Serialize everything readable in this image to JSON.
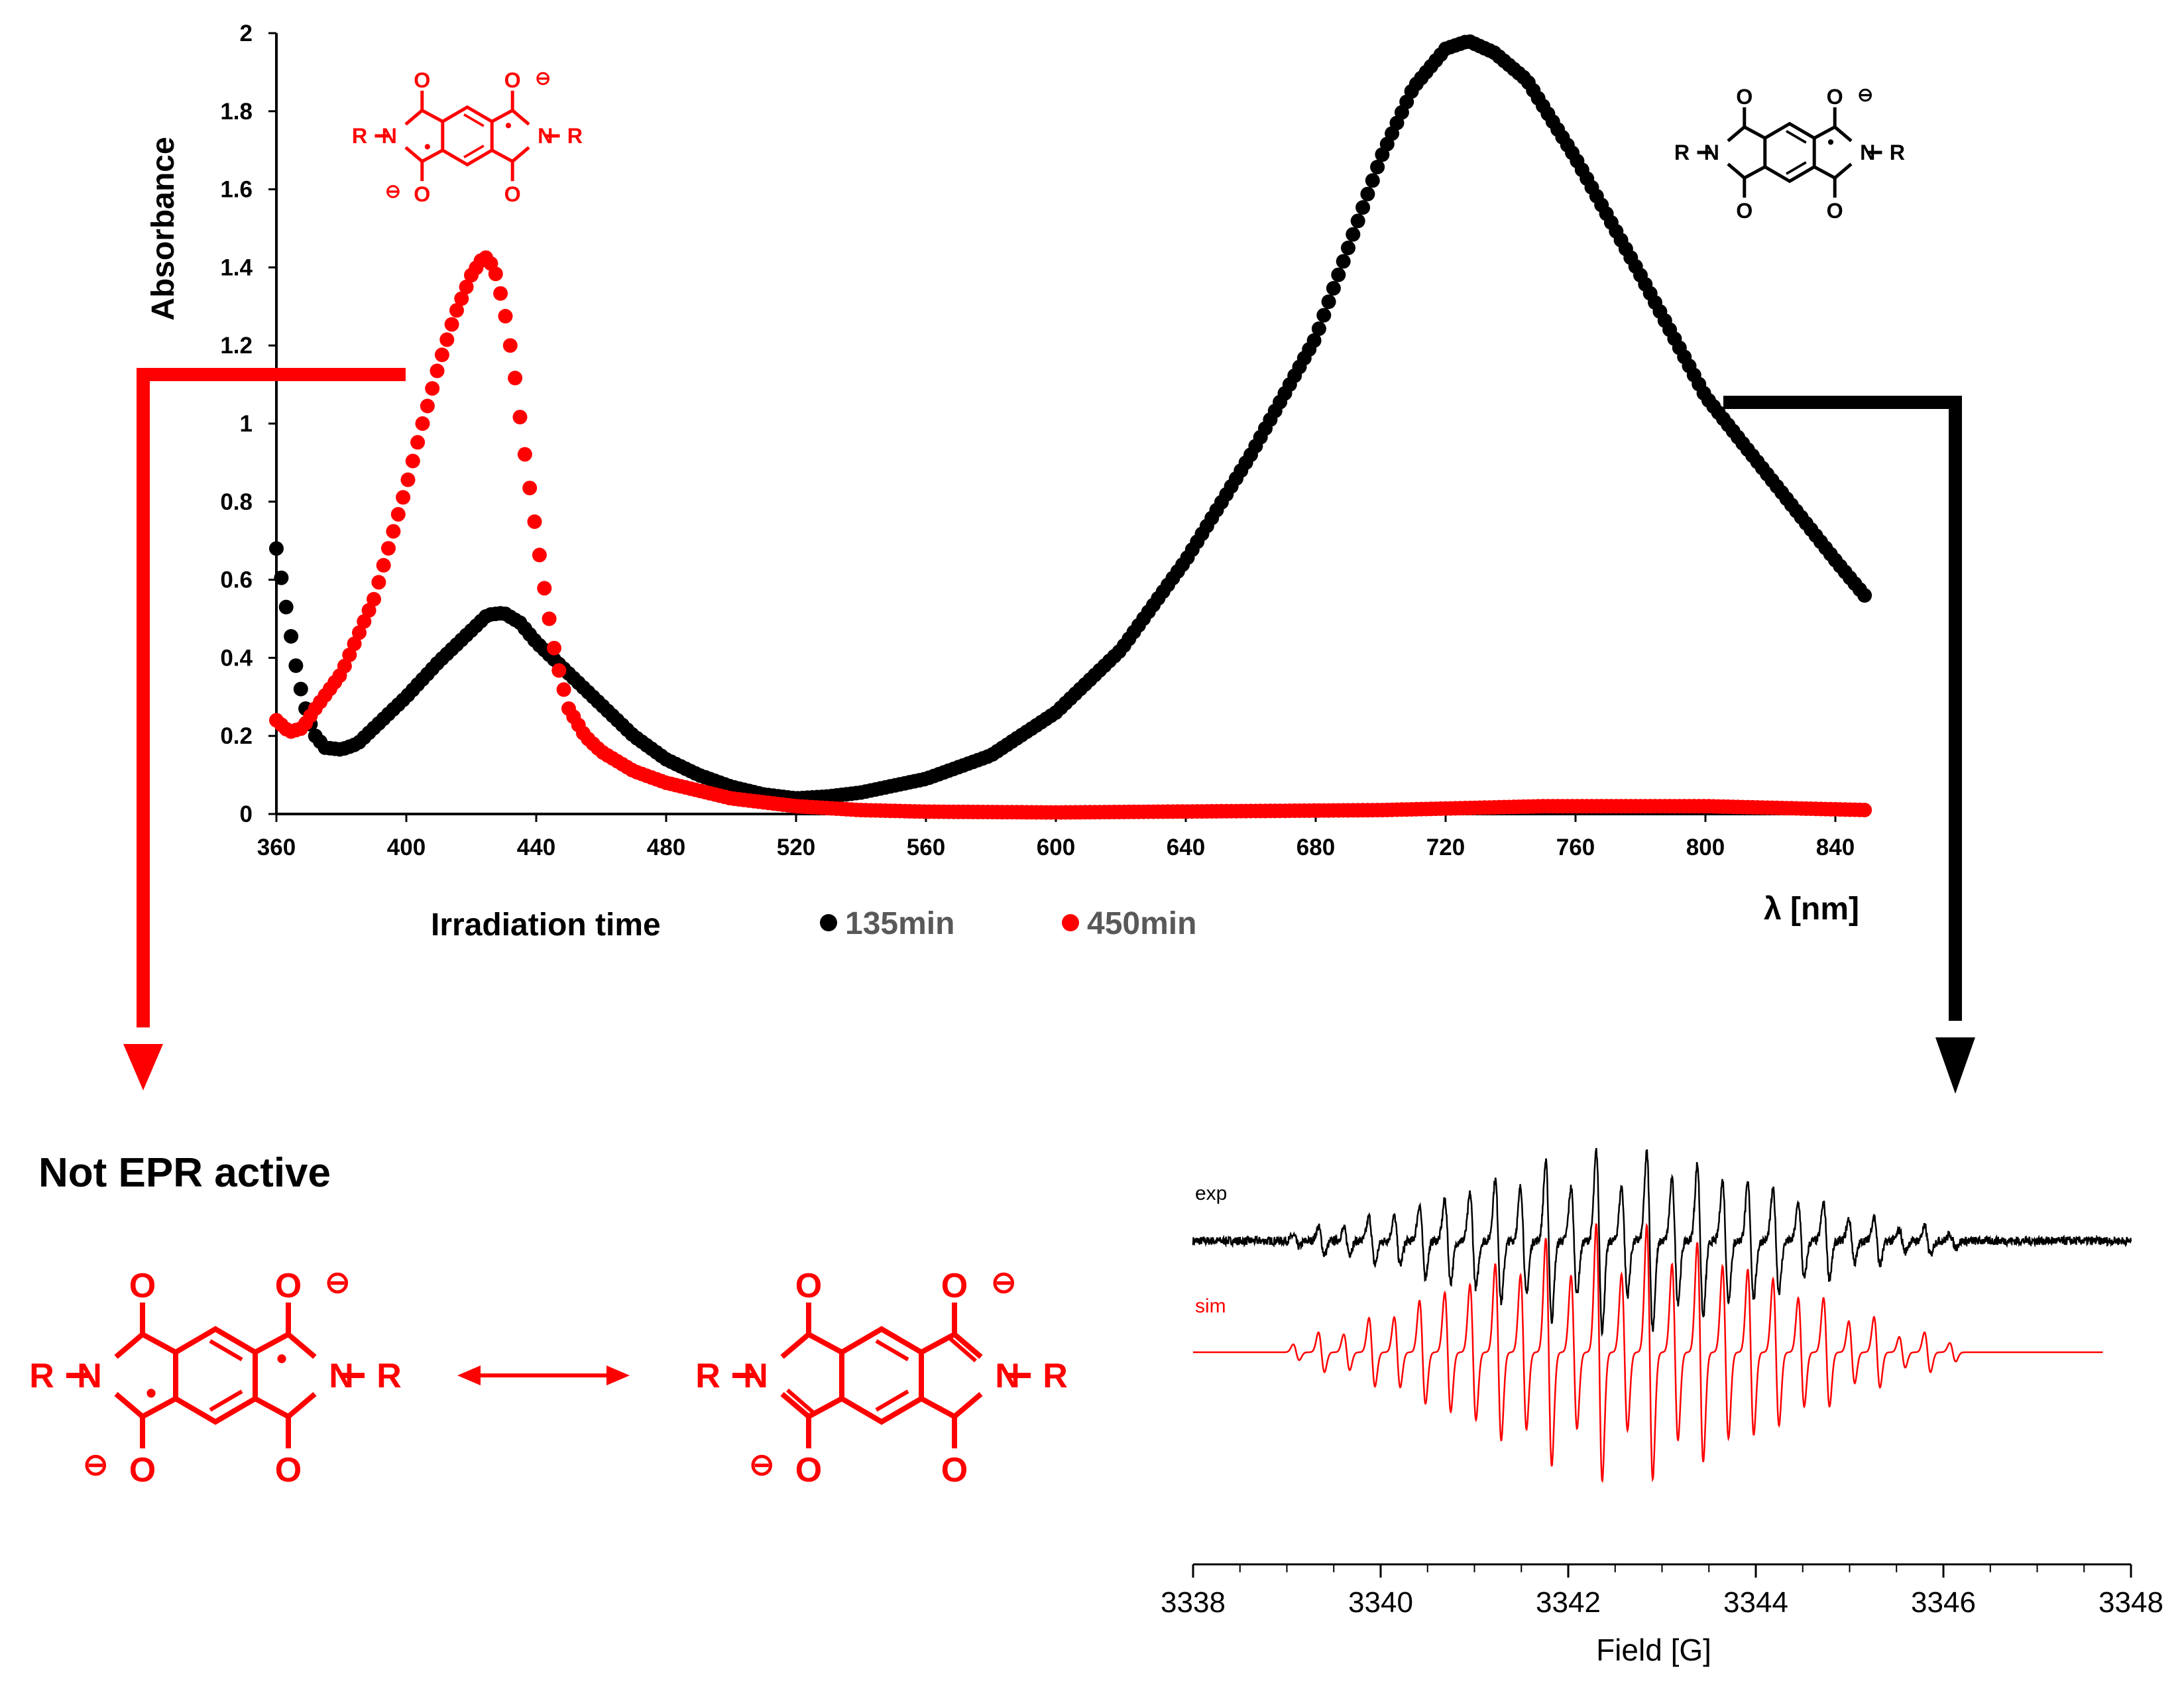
{
  "colors": {
    "black": "#000000",
    "red": "#ff0000",
    "legend_text": "#595959"
  },
  "chart_data": [
    {
      "type": "scatter",
      "title": "",
      "xlabel": "λ [nm]",
      "ylabel": "Absorbance",
      "xlim": [
        360,
        850
      ],
      "ylim": [
        0,
        2
      ],
      "xticks": [
        360,
        400,
        440,
        480,
        520,
        560,
        600,
        640,
        680,
        720,
        760,
        800,
        840
      ],
      "yticks": [
        0,
        0.2,
        0.4,
        0.6,
        0.8,
        1,
        1.2,
        1.4,
        1.6,
        1.8,
        2
      ],
      "ytick_labels": [
        "0",
        "0.2",
        "0.4",
        "0.6",
        "0.8",
        "1",
        "1.2",
        "1.4",
        "1.6",
        "1.8",
        "2"
      ],
      "legend_title": "Irradiation time",
      "legend_position": "bottom",
      "series": [
        {
          "name": "135min",
          "color": "#000000",
          "anchors": [
            [
              360,
              0.68
            ],
            [
              362,
              0.58
            ],
            [
              364,
              0.48
            ],
            [
              366,
              0.38
            ],
            [
              368,
              0.3
            ],
            [
              370,
              0.24
            ],
            [
              372,
              0.2
            ],
            [
              375,
              0.17
            ],
            [
              380,
              0.165
            ],
            [
              385,
              0.18
            ],
            [
              390,
              0.22
            ],
            [
              400,
              0.3
            ],
            [
              410,
              0.39
            ],
            [
              420,
              0.47
            ],
            [
              425,
              0.51
            ],
            [
              430,
              0.515
            ],
            [
              435,
              0.49
            ],
            [
              440,
              0.44
            ],
            [
              450,
              0.36
            ],
            [
              460,
              0.28
            ],
            [
              470,
              0.2
            ],
            [
              480,
              0.14
            ],
            [
              490,
              0.1
            ],
            [
              500,
              0.07
            ],
            [
              510,
              0.05
            ],
            [
              520,
              0.04
            ],
            [
              530,
              0.045
            ],
            [
              540,
              0.055
            ],
            [
              560,
              0.09
            ],
            [
              580,
              0.15
            ],
            [
              600,
              0.26
            ],
            [
              620,
              0.42
            ],
            [
              640,
              0.65
            ],
            [
              660,
              0.92
            ],
            [
              680,
              1.22
            ],
            [
              690,
              1.45
            ],
            [
              700,
              1.68
            ],
            [
              710,
              1.86
            ],
            [
              720,
              1.96
            ],
            [
              727,
              1.98
            ],
            [
              735,
              1.95
            ],
            [
              745,
              1.88
            ],
            [
              760,
              1.68
            ],
            [
              780,
              1.38
            ],
            [
              800,
              1.07
            ],
            [
              820,
              0.86
            ],
            [
              840,
              0.65
            ],
            [
              850,
              0.55
            ]
          ]
        },
        {
          "name": "450min",
          "color": "#ff0000",
          "anchors": [
            [
              360,
              0.24
            ],
            [
              364,
              0.21
            ],
            [
              368,
              0.22
            ],
            [
              372,
              0.27
            ],
            [
              380,
              0.36
            ],
            [
              390,
              0.55
            ],
            [
              400,
              0.84
            ],
            [
              405,
              1.0
            ],
            [
              410,
              1.15
            ],
            [
              415,
              1.28
            ],
            [
              420,
              1.38
            ],
            [
              424,
              1.43
            ],
            [
              427,
              1.4
            ],
            [
              430,
              1.3
            ],
            [
              433,
              1.15
            ],
            [
              436,
              0.95
            ],
            [
              440,
              0.72
            ],
            [
              443,
              0.55
            ],
            [
              446,
              0.4
            ],
            [
              450,
              0.27
            ],
            [
              455,
              0.2
            ],
            [
              460,
              0.16
            ],
            [
              470,
              0.11
            ],
            [
              480,
              0.08
            ],
            [
              490,
              0.06
            ],
            [
              500,
              0.04
            ],
            [
              520,
              0.02
            ],
            [
              540,
              0.01
            ],
            [
              560,
              0.006
            ],
            [
              600,
              0.004
            ],
            [
              700,
              0.01
            ],
            [
              750,
              0.02
            ],
            [
              800,
              0.02
            ],
            [
              850,
              0.01
            ]
          ]
        }
      ]
    },
    {
      "type": "line",
      "title": "",
      "xlabel": "Field [G]",
      "ylabel": "",
      "xlim": [
        3338,
        3348
      ],
      "xticks": [
        3338,
        3340,
        3342,
        3344,
        3346,
        3348
      ],
      "series": [
        {
          "name": "exp",
          "color": "#000000",
          "center": 3342.6,
          "half_width": 3.5,
          "lines": 27,
          "scale": 1.0,
          "noise": true
        },
        {
          "name": "sim",
          "color": "#ff0000",
          "center": 3342.6,
          "half_width": 3.5,
          "lines": 27,
          "scale": 1.35,
          "noise": false
        }
      ]
    }
  ],
  "structures": {
    "R": "R",
    "N": "N",
    "O": "O",
    "charge": "⊖",
    "radical": "•",
    "bond": "–"
  },
  "annotations": {
    "not_epr_active": "Not EPR active",
    "resonance_arrow": "↔"
  }
}
